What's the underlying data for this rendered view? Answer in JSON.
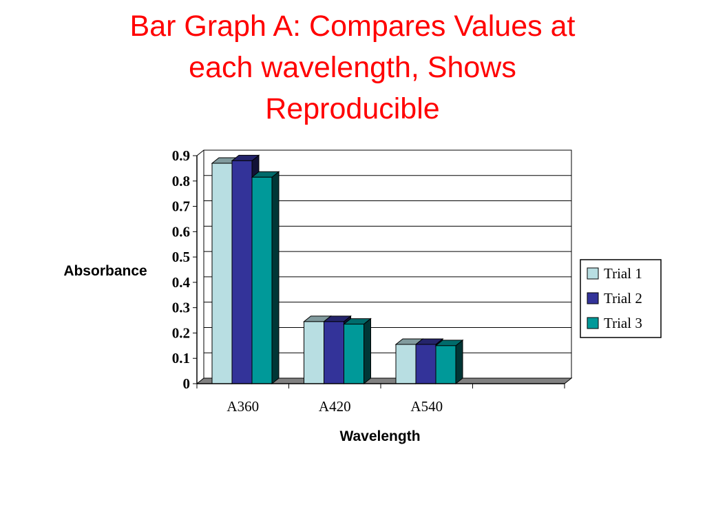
{
  "slide": {
    "title_lines": [
      "Bar Graph A: Compares Values at",
      "each wavelength,  Shows",
      "Reproducible"
    ]
  },
  "chart_data": {
    "type": "bar",
    "categories": [
      "A360",
      "A420",
      "A540",
      ""
    ],
    "series": [
      {
        "name": "Trial 1",
        "values": [
          0.87,
          0.245,
          0.155,
          null
        ],
        "color": "#B8DEE2"
      },
      {
        "name": "Trial 2",
        "values": [
          0.88,
          0.245,
          0.155,
          null
        ],
        "color": "#333399"
      },
      {
        "name": "Trial 3",
        "values": [
          0.815,
          0.235,
          0.15,
          null
        ],
        "color": "#009999"
      }
    ],
    "yticks": [
      "0",
      "0.1",
      "0.2",
      "0.3",
      "0.4",
      "0.5",
      "0.6",
      "0.7",
      "0.8",
      "0.9"
    ],
    "ylim": [
      0,
      0.9
    ],
    "xlabel": "Wavelength",
    "ylabel": "Absorbance",
    "grid": true,
    "legend": "right",
    "three_d": true
  }
}
